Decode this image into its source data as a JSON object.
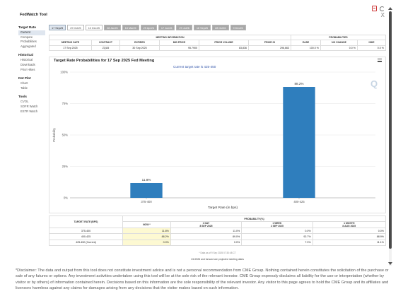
{
  "app": {
    "title": "FedWatch Tool",
    "close_glyph": "X"
  },
  "sidebar": {
    "groups": [
      {
        "title": "Target Rate",
        "items": [
          "Current",
          "Compare",
          "Probabilities",
          "Aggregated"
        ]
      },
      {
        "title": "Historical",
        "items": [
          "Historical",
          "Downloads",
          "Prior Hikes"
        ]
      },
      {
        "title": "Dot Plot",
        "items": [
          "Chart",
          "Table"
        ]
      },
      {
        "title": "Tools",
        "items": [
          "CVOL",
          "SOFR Watch",
          "ESTR Watch"
        ]
      }
    ],
    "active_item": "Current"
  },
  "date_tabs": [
    "17 Sep25",
    "29 Oct25",
    "10 Dec25",
    "28 Jan26",
    "18 Mar26",
    "29 Apr26",
    "17 Jun26",
    "29 Jul26",
    "16 Sep26",
    "28 Oct26",
    "9 Dec26"
  ],
  "meeting_info": {
    "group_header": "MEETING INFORMATION",
    "prob_header": "PROBABILITIES",
    "headers": [
      "MEETING DATE",
      "CONTRACT",
      "EXPIRES",
      "MID PRICE",
      "PRIOR VOLUME",
      "PRIOR OI",
      "EASE",
      "NO CHANGE",
      "HIKE"
    ],
    "row": [
      "17 Sep 2025",
      "ZQU5",
      "30 Sep 2025",
      "95.7900",
      "83,836",
      "296,663",
      "100.0 %",
      "0.0 %",
      "0.0 %"
    ]
  },
  "chart": {
    "title": "Target Rate Probabilities for 17 Sep 2025 Fed Meeting",
    "subtitle": "Current target rate is 425-450"
  },
  "chart_data": {
    "type": "bar",
    "categories": [
      "375-400",
      "400-425"
    ],
    "values": [
      11.8,
      88.2
    ],
    "data_labels": [
      "11.8%",
      "88.2%"
    ],
    "title": "Target Rate Probabilities for 17 Sep 2025 Fed Meeting",
    "subtitle": "Current target rate is 425-450",
    "xlabel": "Target Rate (in bps)",
    "ylabel": "Probability",
    "ylim": [
      0,
      100
    ],
    "yticks": [
      0,
      25,
      50,
      75,
      100
    ],
    "ytick_labels": [
      "0%",
      "25%",
      "50%",
      "75%",
      "100%"
    ],
    "grid": true,
    "legend": "none",
    "bar_color": "#2f7ebd"
  },
  "prob_table": {
    "rate_header": "TARGET RATE (BPS)",
    "prob_header": "PROBABILITY(%)",
    "col_headers": [
      "NOW *",
      "1 DAY\n8 SEP 2025",
      "1 WEEK\n2 SEP 2025",
      "1 MONTH\n8 AUG 2025"
    ],
    "rows": [
      [
        "375-400",
        "11.8%",
        "11.0%",
        "0.0%",
        "0.0%"
      ],
      [
        "400-425",
        "88.2%",
        "89.0%",
        "92.7%",
        "88.9%"
      ],
      [
        "425-450 (Current)",
        "0.0%",
        "0.0%",
        "7.3%",
        "11.1%"
      ]
    ],
    "note": "* Data as of 9 Sep 2025 07:30:48 CT",
    "footnote": "1/1/2026 and forward are projected meeting dates"
  },
  "disclaimer": "*Disclaimer: The data and output from this tool does not constitute investment advice and is not a personal recommendation from CME Group. Nothing contained herein constitutes the solicitation of the purchase or sale of any futures or options. Any investment activities undertaken using this tool will be at the sole risk of the relevant investor. CME Group expressly disclaims all liability for the use or interpretation (whether by visitor or by others) of information contained herein. Decisions based on this information are the sole responsibility of the relevant investor. Any visitor to this page agrees to hold the CME Group and its affiliates and licensors harmless against any claims for damages arising from any decisions that the visitor makes based on such information."
}
